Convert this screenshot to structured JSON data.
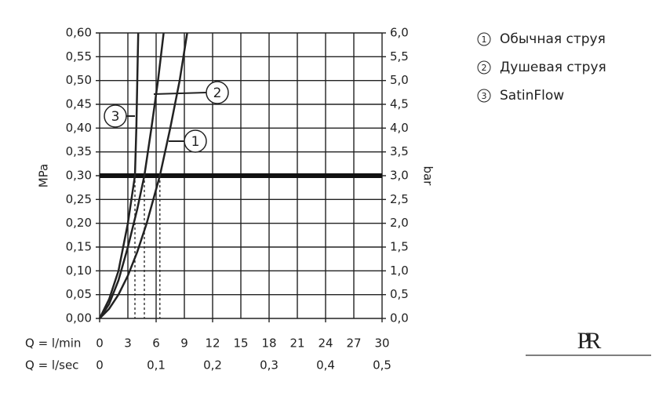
{
  "chart_data": {
    "type": "line",
    "xlabel": "Q = l/min",
    "x2label": "Q = l/sec",
    "ylabel": "MPa",
    "y2label": "bar",
    "xlim": [
      0,
      30
    ],
    "xticks": [
      0,
      3,
      6,
      9,
      12,
      15,
      18,
      21,
      24,
      27,
      30
    ],
    "x2lim": [
      0,
      0.5
    ],
    "x2ticks": [
      0,
      {
        "value": 0.1,
        "label": "0,1"
      },
      {
        "value": 0.2,
        "label": "0,2"
      },
      {
        "value": 0.3,
        "label": "0,3"
      },
      {
        "value": 0.4,
        "label": "0,4"
      },
      {
        "value": 0.5,
        "label": "0,5"
      }
    ],
    "ylim": [
      0,
      0.6
    ],
    "yticks": [
      {
        "value": 0,
        "label": "0,00"
      },
      {
        "value": 0.05,
        "label": "0,05"
      },
      {
        "value": 0.1,
        "label": "0,10"
      },
      {
        "value": 0.15,
        "label": "0,15"
      },
      {
        "value": 0.2,
        "label": "0,20"
      },
      {
        "value": 0.25,
        "label": "0,25"
      },
      {
        "value": 0.3,
        "label": "0,30"
      },
      {
        "value": 0.35,
        "label": "0,35"
      },
      {
        "value": 0.4,
        "label": "0,40"
      },
      {
        "value": 0.45,
        "label": "0,45"
      },
      {
        "value": 0.5,
        "label": "0,50"
      },
      {
        "value": 0.55,
        "label": "0,55"
      },
      {
        "value": 0.6,
        "label": "0,60"
      }
    ],
    "y2lim": [
      0,
      6
    ],
    "y2ticks": [
      {
        "value": 0,
        "label": "0,0"
      },
      {
        "value": 0.5,
        "label": "0,5"
      },
      {
        "value": 1,
        "label": "1,0"
      },
      {
        "value": 1.5,
        "label": "1,5"
      },
      {
        "value": 2,
        "label": "2,0"
      },
      {
        "value": 2.5,
        "label": "2,5"
      },
      {
        "value": 3,
        "label": "3,0"
      },
      {
        "value": 3.5,
        "label": "3,5"
      },
      {
        "value": 4,
        "label": "4,0"
      },
      {
        "value": 4.5,
        "label": "4,5"
      },
      {
        "value": 5,
        "label": "5,0"
      },
      {
        "value": 5.5,
        "label": "5,5"
      },
      {
        "value": 6,
        "label": "6,0"
      }
    ],
    "grid": true,
    "reference_y": 0.3,
    "series": [
      {
        "name": "Обычная струя",
        "label": "1",
        "color": "#222",
        "x": [
          0,
          1,
          2,
          3,
          4,
          5,
          6.4,
          7.5,
          8.5,
          9.3
        ],
        "values": [
          0,
          0.02,
          0.05,
          0.09,
          0.14,
          0.2,
          0.3,
          0.4,
          0.5,
          0.6
        ]
      },
      {
        "name": "Душевая струя",
        "label": "2",
        "color": "#222",
        "x": [
          0,
          1,
          2,
          3,
          4,
          4.75,
          5.5,
          6.2,
          6.8
        ],
        "values": [
          0,
          0.03,
          0.08,
          0.15,
          0.23,
          0.3,
          0.4,
          0.5,
          0.6
        ]
      },
      {
        "name": "SatinFlow",
        "label": "3",
        "color": "#222",
        "x": [
          0,
          1,
          2,
          3,
          3.75,
          3.9,
          4.0,
          4.1
        ],
        "values": [
          0,
          0.04,
          0.1,
          0.2,
          0.3,
          0.4,
          0.5,
          0.6
        ]
      }
    ]
  },
  "logo": "PR"
}
